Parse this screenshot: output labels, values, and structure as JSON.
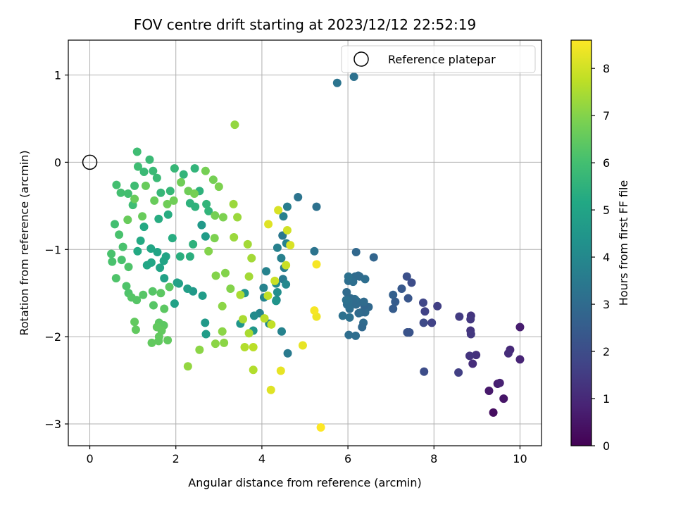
{
  "chart_data": {
    "type": "scatter",
    "title": "FOV centre drift starting at 2023/12/12 22:52:19",
    "xlabel": "Angular distance from reference (arcmin)",
    "ylabel": "Rotation from reference (arcmin)",
    "xlim": [
      -0.5,
      10.5
    ],
    "ylim": [
      -3.25,
      1.4
    ],
    "xticks": [
      0,
      2,
      4,
      6,
      8,
      10
    ],
    "xtick_labels": [
      "0",
      "2",
      "4",
      "6",
      "8",
      "10"
    ],
    "yticks": [
      1,
      0,
      -1,
      -2,
      -3
    ],
    "ytick_labels": [
      "1",
      "0",
      "−1",
      "−2",
      "−3"
    ],
    "grid": true,
    "legend": {
      "placement": "top-right",
      "entries": [
        "Reference platepar"
      ]
    },
    "reference_point": {
      "x": 0,
      "y": 0
    },
    "colormap": "viridis",
    "colorbar": {
      "label": "Hours from first FF file",
      "range": [
        0,
        8.6
      ],
      "ticks": [
        0,
        1,
        2,
        3,
        4,
        5,
        6,
        7,
        8
      ],
      "tick_labels": [
        "0",
        "1",
        "2",
        "3",
        "4",
        "5",
        "6",
        "7",
        "8"
      ]
    },
    "points": [
      [
        9.38,
        -2.87,
        0.3
      ],
      [
        9.62,
        -2.71,
        0.5
      ],
      [
        9.28,
        -2.62,
        0.6
      ],
      [
        9.48,
        -2.54,
        0.7
      ],
      [
        9.53,
        -2.53,
        0.8
      ],
      [
        10.0,
        -1.89,
        0.7
      ],
      [
        10.0,
        -2.26,
        0.9
      ],
      [
        9.77,
        -2.15,
        1.0
      ],
      [
        9.73,
        -2.19,
        1.1
      ],
      [
        8.9,
        -2.31,
        1.1
      ],
      [
        8.98,
        -2.21,
        1.2
      ],
      [
        8.83,
        -2.22,
        1.3
      ],
      [
        8.85,
        -1.93,
        1.3
      ],
      [
        8.86,
        -1.97,
        1.4
      ],
      [
        8.86,
        -1.76,
        1.3
      ],
      [
        8.85,
        -1.8,
        1.4
      ],
      [
        8.59,
        -1.77,
        1.5
      ],
      [
        8.57,
        -2.41,
        1.6
      ],
      [
        8.08,
        -1.65,
        1.6
      ],
      [
        7.95,
        -1.84,
        1.7
      ],
      [
        7.79,
        -1.71,
        1.7
      ],
      [
        7.75,
        -1.61,
        1.8
      ],
      [
        7.76,
        -1.84,
        1.9
      ],
      [
        7.77,
        -2.4,
        2.0
      ],
      [
        7.48,
        -1.38,
        2.0
      ],
      [
        7.37,
        -1.31,
        2.1
      ],
      [
        7.38,
        -1.95,
        2.2
      ],
      [
        7.43,
        -1.95,
        2.2
      ],
      [
        7.4,
        -1.56,
        2.3
      ],
      [
        7.25,
        -1.45,
        2.4
      ],
      [
        7.1,
        -1.6,
        2.5
      ],
      [
        7.05,
        -1.68,
        2.5
      ],
      [
        7.05,
        -1.52,
        2.6
      ],
      [
        6.6,
        -1.09,
        2.8
      ],
      [
        6.48,
        -1.66,
        2.9
      ],
      [
        6.4,
        -1.72,
        3.0
      ],
      [
        6.38,
        -1.64,
        2.8
      ],
      [
        6.36,
        -1.84,
        3.0
      ],
      [
        6.33,
        -1.89,
        2.9
      ],
      [
        6.31,
        -1.72,
        2.9
      ],
      [
        6.25,
        -1.73,
        3.0
      ],
      [
        6.2,
        -1.59,
        3.0
      ],
      [
        6.37,
        -1.6,
        3.0
      ],
      [
        6.19,
        -1.03,
        2.9
      ],
      [
        6.19,
        -1.63,
        3.0
      ],
      [
        6.16,
        -1.57,
        3.1
      ],
      [
        6.12,
        -1.6,
        3.0
      ],
      [
        6.06,
        -1.56,
        3.0
      ],
      [
        6.04,
        -1.68,
        3.1
      ],
      [
        6.01,
        -1.6,
        3.1
      ],
      [
        5.98,
        -1.63,
        3.1
      ],
      [
        5.96,
        -1.58,
        3.2
      ],
      [
        5.97,
        -1.49,
        3.0
      ],
      [
        6.02,
        -1.98,
        3.1
      ],
      [
        6.18,
        -1.99,
        3.1
      ],
      [
        6.27,
        -1.31,
        3.0
      ],
      [
        6.17,
        -1.31,
        3.0
      ],
      [
        6.12,
        -1.37,
        3.1
      ],
      [
        6.01,
        -1.36,
        3.1
      ],
      [
        6.01,
        -1.31,
        3.2
      ],
      [
        6.4,
        -1.34,
        3.1
      ],
      [
        6.24,
        -1.3,
        3.0
      ],
      [
        6.04,
        -1.78,
        3.2
      ],
      [
        5.88,
        -1.76,
        3.2
      ],
      [
        6.14,
        0.98,
        3.2
      ],
      [
        5.75,
        0.91,
        3.3
      ],
      [
        5.27,
        -0.51,
        3.2
      ],
      [
        5.22,
        -1.02,
        3.3
      ],
      [
        4.84,
        -0.4,
        3.3
      ],
      [
        4.48,
        -0.84,
        3.4
      ],
      [
        4.6,
        -2.19,
        3.5
      ],
      [
        4.49,
        -1.34,
        3.5
      ],
      [
        4.52,
        -1.21,
        3.6
      ],
      [
        4.45,
        -1.1,
        3.7
      ],
      [
        4.57,
        -0.93,
        3.8
      ],
      [
        4.36,
        -0.98,
        3.7
      ],
      [
        4.59,
        -0.51,
        3.6
      ],
      [
        4.5,
        -0.62,
        3.7
      ],
      [
        4.1,
        -1.25,
        3.8
      ],
      [
        4.04,
        -1.44,
        3.8
      ],
      [
        3.95,
        -1.73,
        3.9
      ],
      [
        4.05,
        -1.55,
        3.9
      ],
      [
        4.34,
        -1.58,
        3.7
      ],
      [
        4.46,
        -1.94,
        3.8
      ],
      [
        4.56,
        -1.4,
        4.0
      ],
      [
        4.17,
        -1.85,
        4.0
      ],
      [
        3.82,
        -1.76,
        4.1
      ],
      [
        4.33,
        -1.39,
        4.1
      ],
      [
        4.36,
        -1.49,
        4.2
      ],
      [
        4.33,
        -1.59,
        4.4
      ],
      [
        3.6,
        -1.5,
        4.4
      ],
      [
        3.5,
        -1.85,
        4.5
      ],
      [
        3.8,
        -1.93,
        4.5
      ],
      [
        2.68,
        -1.84,
        4.6
      ],
      [
        2.4,
        -1.48,
        4.6
      ],
      [
        2.6,
        -0.72,
        4.6
      ],
      [
        2.69,
        -0.85,
        4.7
      ],
      [
        2.62,
        -1.53,
        4.7
      ],
      [
        2.7,
        -1.97,
        4.7
      ],
      [
        2.27,
        -1.45,
        4.8
      ],
      [
        2.07,
        -1.39,
        4.8
      ],
      [
        1.97,
        -1.62,
        4.9
      ],
      [
        2.03,
        -1.38,
        4.9
      ],
      [
        1.73,
        -1.33,
        4.9
      ],
      [
        1.72,
        -1.13,
        5.0
      ],
      [
        1.77,
        -1.08,
        5.0
      ],
      [
        1.63,
        -1.21,
        5.0
      ],
      [
        1.57,
        -1.03,
        5.0
      ],
      [
        1.42,
        -0.99,
        5.1
      ],
      [
        1.43,
        -1.15,
        5.1
      ],
      [
        1.33,
        -1.18,
        5.1
      ],
      [
        1.11,
        -1.02,
        5.2
      ],
      [
        1.18,
        -0.9,
        5.2
      ],
      [
        1.26,
        -0.74,
        5.2
      ],
      [
        1.6,
        -0.65,
        5.3
      ],
      [
        1.82,
        -0.6,
        5.3
      ],
      [
        1.92,
        -0.87,
        5.3
      ],
      [
        2.1,
        -1.08,
        5.4
      ],
      [
        2.33,
        -1.08,
        5.4
      ],
      [
        2.4,
        -0.94,
        5.5
      ],
      [
        2.45,
        -0.51,
        5.5
      ],
      [
        2.33,
        -0.47,
        5.5
      ],
      [
        2.55,
        -0.33,
        5.5
      ],
      [
        2.71,
        -0.48,
        5.6
      ],
      [
        2.76,
        -0.56,
        5.6
      ],
      [
        2.44,
        -0.07,
        5.6
      ],
      [
        2.18,
        -0.14,
        5.6
      ],
      [
        1.97,
        -0.07,
        5.7
      ],
      [
        1.87,
        -0.33,
        5.7
      ],
      [
        1.65,
        -0.35,
        5.7
      ],
      [
        1.47,
        -0.1,
        5.8
      ],
      [
        1.56,
        -0.18,
        5.8
      ],
      [
        1.39,
        0.03,
        5.8
      ],
      [
        1.26,
        -0.11,
        5.8
      ],
      [
        1.12,
        -0.05,
        5.9
      ],
      [
        1.1,
        0.12,
        5.9
      ],
      [
        1.04,
        -0.27,
        5.9
      ],
      [
        1.0,
        -0.49,
        5.9
      ],
      [
        0.89,
        -0.36,
        6.0
      ],
      [
        0.72,
        -0.35,
        6.0
      ],
      [
        0.62,
        -0.26,
        6.0
      ],
      [
        0.58,
        -0.71,
        6.0
      ],
      [
        0.68,
        -0.83,
        6.1
      ],
      [
        0.77,
        -0.97,
        6.1
      ],
      [
        0.74,
        -1.12,
        6.1
      ],
      [
        0.5,
        -1.05,
        6.1
      ],
      [
        0.52,
        -1.14,
        6.1
      ],
      [
        0.61,
        -1.33,
        6.2
      ],
      [
        0.9,
        -1.2,
        6.2
      ],
      [
        0.85,
        -1.42,
        6.2
      ],
      [
        0.9,
        -1.5,
        6.2
      ],
      [
        0.97,
        -1.55,
        6.3
      ],
      [
        1.09,
        -1.58,
        6.3
      ],
      [
        1.24,
        -1.52,
        6.3
      ],
      [
        1.46,
        -1.48,
        6.3
      ],
      [
        1.48,
        -1.64,
        6.3
      ],
      [
        1.65,
        -1.5,
        6.4
      ],
      [
        1.73,
        -1.68,
        6.4
      ],
      [
        1.85,
        -1.43,
        6.4
      ],
      [
        1.61,
        -1.84,
        6.4
      ],
      [
        1.72,
        -1.87,
        6.4
      ],
      [
        1.67,
        -1.93,
        6.5
      ],
      [
        1.61,
        -2.0,
        6.5
      ],
      [
        1.81,
        -2.04,
        6.5
      ],
      [
        1.6,
        -2.05,
        6.5
      ],
      [
        1.56,
        -1.89,
        6.5
      ],
      [
        1.44,
        -2.07,
        6.5
      ],
      [
        1.04,
        -1.83,
        6.5
      ],
      [
        1.07,
        -1.92,
        6.5
      ],
      [
        0.88,
        -0.66,
        6.6
      ],
      [
        1.22,
        -0.62,
        6.6
      ],
      [
        1.04,
        -0.42,
        6.6
      ],
      [
        1.3,
        -0.27,
        6.6
      ],
      [
        1.5,
        -0.44,
        6.6
      ],
      [
        1.8,
        -0.48,
        6.7
      ],
      [
        1.95,
        -0.44,
        6.7
      ],
      [
        2.12,
        -0.23,
        6.7
      ],
      [
        2.29,
        -0.33,
        6.7
      ],
      [
        2.43,
        -0.36,
        6.8
      ],
      [
        2.69,
        -0.1,
        6.8
      ],
      [
        2.87,
        -0.2,
        6.8
      ],
      [
        2.91,
        -0.61,
        6.8
      ],
      [
        3.0,
        -0.28,
        6.9
      ],
      [
        3.1,
        -0.63,
        6.9
      ],
      [
        2.9,
        -0.87,
        6.9
      ],
      [
        2.76,
        -1.02,
        7.0
      ],
      [
        2.93,
        -1.3,
        7.0
      ],
      [
        3.15,
        -1.27,
        7.0
      ],
      [
        3.27,
        -1.45,
        7.0
      ],
      [
        3.08,
        -1.65,
        7.1
      ],
      [
        3.08,
        -1.94,
        7.1
      ],
      [
        2.92,
        -2.08,
        7.1
      ],
      [
        3.12,
        -2.07,
        7.1
      ],
      [
        2.55,
        -2.15,
        7.1
      ],
      [
        2.28,
        -2.34,
        7.2
      ],
      [
        3.37,
        0.43,
        7.2
      ],
      [
        3.34,
        -0.48,
        7.3
      ],
      [
        3.43,
        -0.63,
        7.3
      ],
      [
        3.35,
        -0.86,
        7.3
      ],
      [
        3.67,
        -0.94,
        7.4
      ],
      [
        3.76,
        -1.1,
        7.4
      ],
      [
        3.7,
        -1.31,
        7.4
      ],
      [
        3.5,
        -1.52,
        7.5
      ],
      [
        3.56,
        -1.8,
        7.5
      ],
      [
        3.7,
        -1.96,
        7.5
      ],
      [
        3.6,
        -2.12,
        7.6
      ],
      [
        3.8,
        -2.38,
        7.6
      ],
      [
        3.8,
        -2.12,
        7.7
      ],
      [
        4.06,
        -1.79,
        7.7
      ],
      [
        4.22,
        -1.86,
        7.8
      ],
      [
        4.14,
        -1.53,
        7.8
      ],
      [
        4.3,
        -1.36,
        7.9
      ],
      [
        4.56,
        -1.18,
        7.9
      ],
      [
        4.59,
        -0.78,
        8.0
      ],
      [
        4.66,
        -0.95,
        8.1
      ],
      [
        4.38,
        -0.55,
        8.1
      ],
      [
        4.15,
        -0.71,
        8.2
      ],
      [
        4.21,
        -2.61,
        8.2
      ],
      [
        4.44,
        -2.39,
        8.3
      ],
      [
        4.95,
        -2.1,
        8.3
      ],
      [
        5.27,
        -1.77,
        8.4
      ],
      [
        5.22,
        -1.7,
        8.5
      ],
      [
        5.27,
        -1.17,
        8.5
      ],
      [
        5.37,
        -3.04,
        8.6
      ]
    ]
  }
}
